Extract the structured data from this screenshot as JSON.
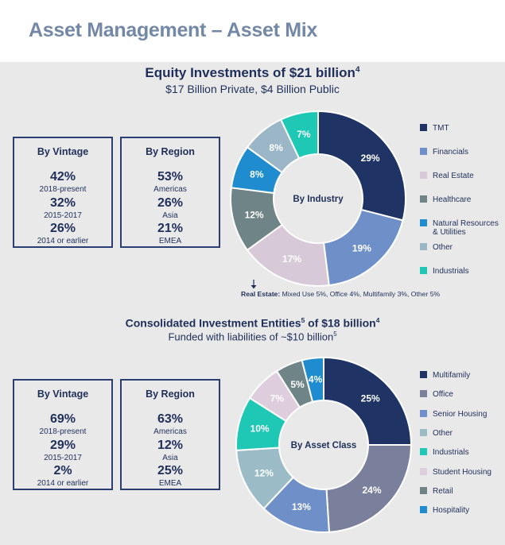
{
  "page_title": "Asset Management – Asset Mix",
  "section1": {
    "title": "Equity Investments of $21 billion",
    "title_sup": "4",
    "subtitle": "$17 Billion Private, $4 Billion Public",
    "vintage": {
      "heading": "By Vintage",
      "items": [
        {
          "pct": "42%",
          "label": "2018-present"
        },
        {
          "pct": "32%",
          "label": "2015-2017"
        },
        {
          "pct": "26%",
          "label": "2014 or earlier"
        }
      ]
    },
    "region": {
      "heading": "By Region",
      "items": [
        {
          "pct": "53%",
          "label": "Americas"
        },
        {
          "pct": "26%",
          "label": "Asia"
        },
        {
          "pct": "21%",
          "label": "EMEA"
        }
      ]
    },
    "note_label": "Real Estate:",
    "note_text": " Mixed Use 5%, Office 4%, Multifamily 3%, Other 5%"
  },
  "section2": {
    "title": "Consolidated Investment Entities",
    "title_sup1": "5",
    "title_mid": " of $18 billion",
    "title_sup2": "4",
    "subtitle": "Funded with liabilities of ~$10 billion",
    "subtitle_sup": "5",
    "vintage": {
      "heading": "By Vintage",
      "items": [
        {
          "pct": "69%",
          "label": "2018-present"
        },
        {
          "pct": "29%",
          "label": "2015-2017"
        },
        {
          "pct": "2%",
          "label": "2014 or earlier"
        }
      ]
    },
    "region": {
      "heading": "By Region",
      "items": [
        {
          "pct": "63%",
          "label": "Americas"
        },
        {
          "pct": "12%",
          "label": "Asia"
        },
        {
          "pct": "25%",
          "label": "EMEA"
        }
      ]
    }
  },
  "chart_data": [
    {
      "type": "pie",
      "center_label": "By Industry",
      "slices": [
        {
          "name": "TMT",
          "value": 29,
          "label": "29%",
          "color": "#1f3464"
        },
        {
          "name": "Financials",
          "value": 19,
          "label": "19%",
          "color": "#6e8fc8"
        },
        {
          "name": "Real Estate",
          "value": 17,
          "label": "17%",
          "color": "#d8c9d8"
        },
        {
          "name": "Healthcare",
          "value": 12,
          "label": "12%",
          "color": "#6f8487"
        },
        {
          "name": "Natural Resources & Utilities",
          "value": 8,
          "label": "8%",
          "color": "#1e8ccf"
        },
        {
          "name": "Other",
          "value": 8,
          "label": "8%",
          "color": "#9bb6c6"
        },
        {
          "name": "Industrials",
          "value": 7,
          "label": "7%",
          "color": "#1fc8b4"
        }
      ],
      "legend": [
        {
          "name": "TMT",
          "color": "#1f3464"
        },
        {
          "name": "Financials",
          "color": "#6e8fc8"
        },
        {
          "name": "Real Estate",
          "color": "#d8c9d8"
        },
        {
          "name": "Healthcare",
          "color": "#6f8487"
        },
        {
          "name": "Natural Resources\n& Utilities",
          "color": "#1e8ccf"
        },
        {
          "name": "Other",
          "color": "#9bb6c6"
        },
        {
          "name": "Industrials",
          "color": "#1fc8b4"
        }
      ]
    },
    {
      "type": "pie",
      "center_label": "By Asset Class",
      "slices": [
        {
          "name": "Multifamily",
          "value": 25,
          "label": "25%",
          "color": "#1f3464"
        },
        {
          "name": "Office",
          "value": 24,
          "label": "24%",
          "color": "#7a7f9c"
        },
        {
          "name": "Senior Housing",
          "value": 13,
          "label": "13%",
          "color": "#6e8fc8"
        },
        {
          "name": "Other",
          "value": 12,
          "label": "12%",
          "color": "#9bbcc6"
        },
        {
          "name": "Industrials",
          "value": 10,
          "label": "10%",
          "color": "#1fc8b4"
        },
        {
          "name": "Student Housing",
          "value": 7,
          "label": "7%",
          "color": "#ddcddd"
        },
        {
          "name": "Retail",
          "value": 5,
          "label": "5%",
          "color": "#6f8487"
        },
        {
          "name": "Hospitality",
          "value": 4,
          "label": "4%",
          "color": "#1e8ccf"
        }
      ],
      "legend": [
        {
          "name": "Multifamily",
          "color": "#1f3464"
        },
        {
          "name": "Office",
          "color": "#7a7f9c"
        },
        {
          "name": "Senior Housing",
          "color": "#6e8fc8"
        },
        {
          "name": "Other",
          "color": "#9bbcc6"
        },
        {
          "name": "Industrials",
          "color": "#1fc8b4"
        },
        {
          "name": "Student Housing",
          "color": "#ddcddd"
        },
        {
          "name": "Retail",
          "color": "#6f8487"
        },
        {
          "name": "Hospitality",
          "color": "#1e8ccf"
        }
      ]
    }
  ]
}
